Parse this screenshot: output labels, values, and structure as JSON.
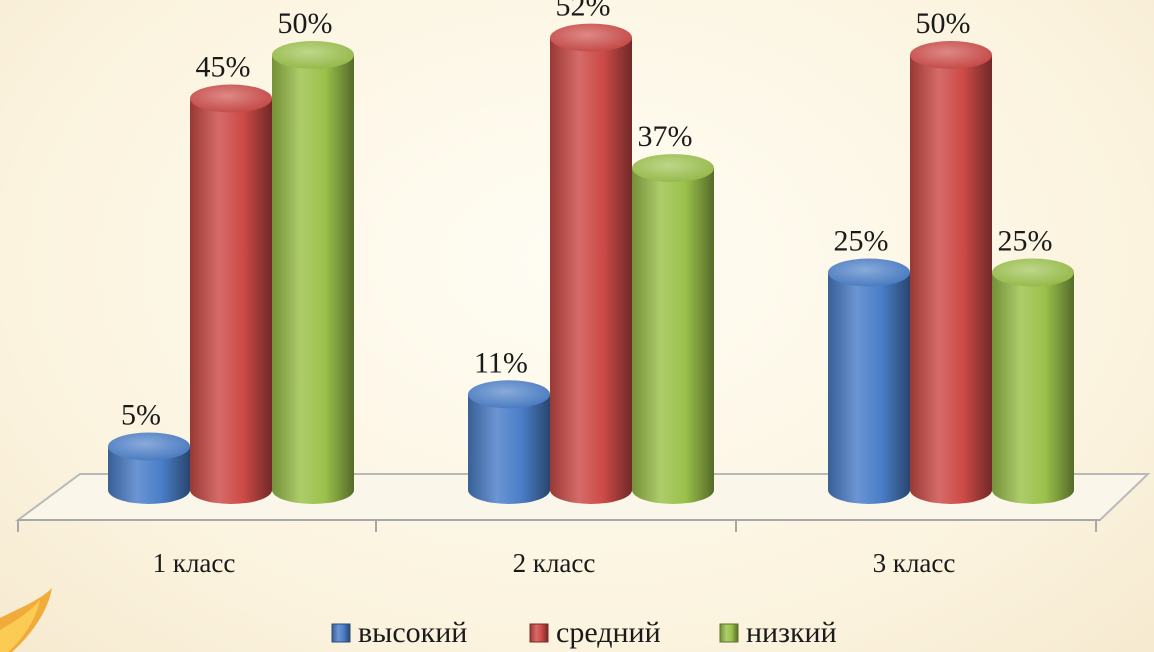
{
  "chart_data": {
    "type": "bar",
    "categories": [
      "1 класс",
      "2 класс",
      "3 класс"
    ],
    "series": [
      {
        "name": "высокий",
        "values": [
          5,
          11,
          25
        ],
        "color": "#4a7ec8"
      },
      {
        "name": "средний",
        "values": [
          45,
          52,
          50
        ],
        "color": "#cc4a47"
      },
      {
        "name": "низкий",
        "values": [
          50,
          37,
          25
        ],
        "color": "#9bc14b"
      }
    ],
    "value_suffix": "%",
    "ylim": [
      0,
      55
    ],
    "legend_position": "bottom",
    "grid": false,
    "style": "3d-cylinder"
  }
}
